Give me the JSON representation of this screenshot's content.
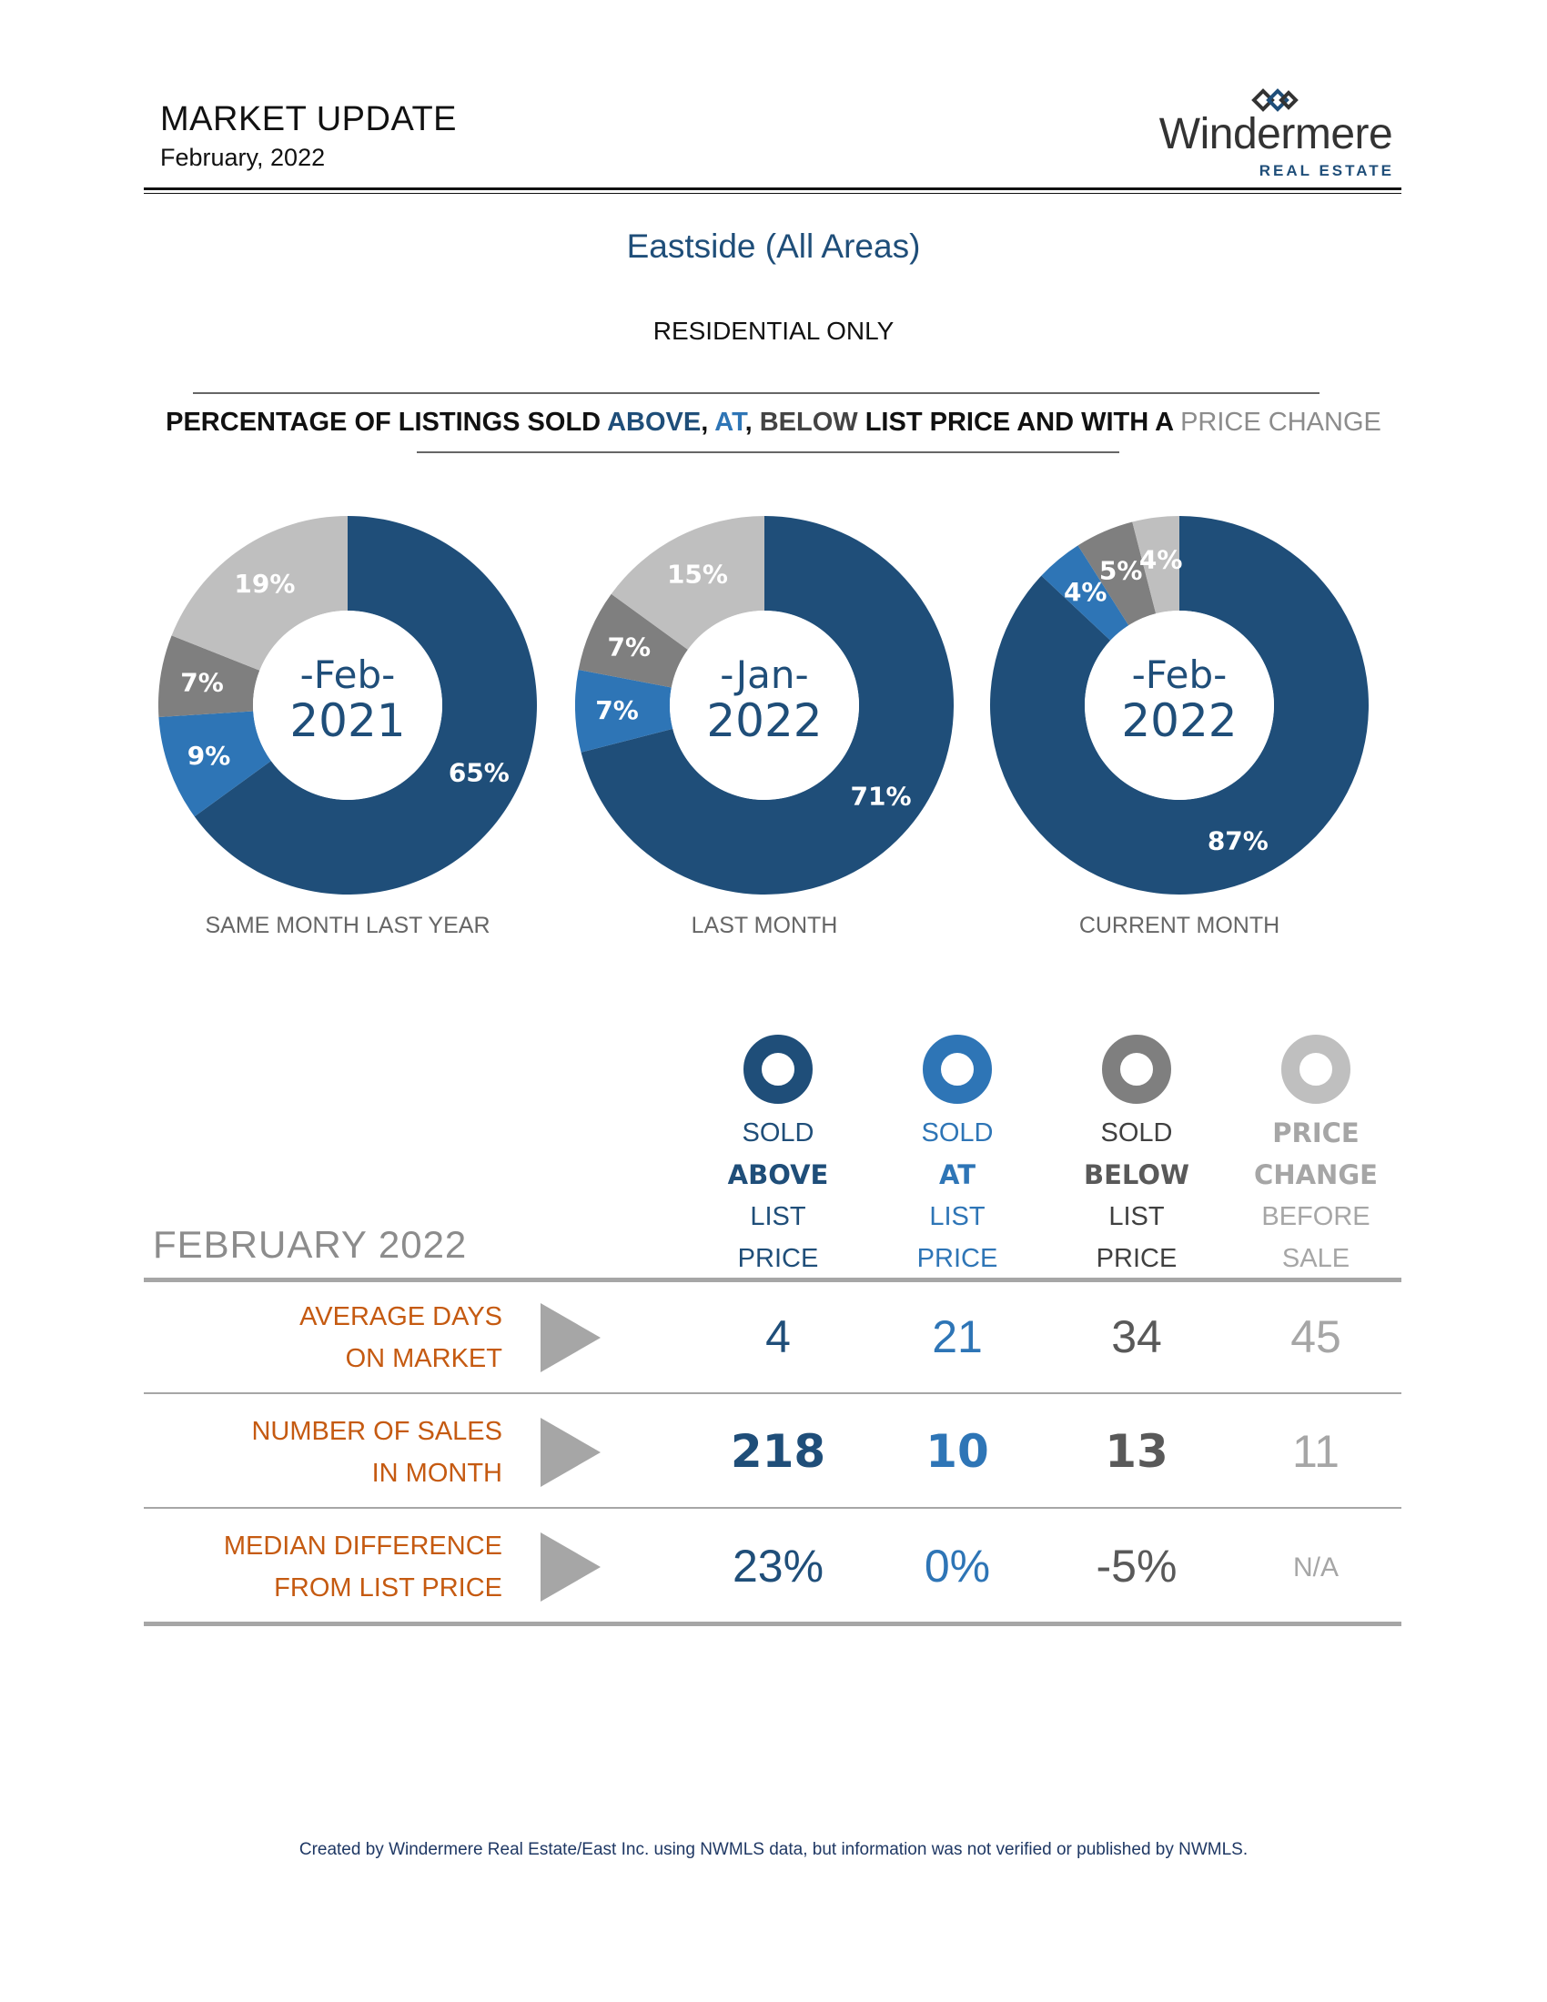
{
  "header": {
    "title": "MARKET UPDATE",
    "date": "February, 2022",
    "logo_word": "Windermere",
    "logo_sub": "REAL ESTATE"
  },
  "area_title": "Eastside (All Areas)",
  "property_type": "RESIDENTIAL ONLY",
  "section_heading": {
    "prefix": "PERCENTAGE OF LISTINGS SOLD ",
    "above": "ABOVE",
    "sep1": ", ",
    "at": "AT",
    "sep2": ", ",
    "below": "BELOW",
    "middle": " LIST PRICE AND WITH A ",
    "change": "PRICE CHANGE"
  },
  "colors": {
    "above": "#1f4e79",
    "at": "#2e75b6",
    "below": "#7f7f7f",
    "change": "#bfbfbf",
    "row_label": "#c55a11"
  },
  "chart_data": [
    {
      "type": "pie",
      "center_month": "-Feb-",
      "center_year": "2021",
      "caption": "SAME MONTH LAST YEAR",
      "series": [
        {
          "name": "SOLD ABOVE LIST PRICE",
          "value": 65,
          "label": "65%"
        },
        {
          "name": "SOLD AT LIST PRICE",
          "value": 9,
          "label": "9%"
        },
        {
          "name": "SOLD BELOW LIST PRICE",
          "value": 7,
          "label": "7%"
        },
        {
          "name": "PRICE CHANGE BEFORE SALE",
          "value": 19,
          "label": "19%"
        }
      ]
    },
    {
      "type": "pie",
      "center_month": "-Jan-",
      "center_year": "2022",
      "caption": "LAST MONTH",
      "series": [
        {
          "name": "SOLD ABOVE LIST PRICE",
          "value": 71,
          "label": "71%"
        },
        {
          "name": "SOLD AT LIST PRICE",
          "value": 7,
          "label": "7%"
        },
        {
          "name": "SOLD BELOW LIST PRICE",
          "value": 7,
          "label": "7%"
        },
        {
          "name": "PRICE CHANGE BEFORE SALE",
          "value": 15,
          "label": "15%"
        }
      ]
    },
    {
      "type": "pie",
      "center_month": "-Feb-",
      "center_year": "2022",
      "caption": "CURRENT MONTH",
      "series": [
        {
          "name": "SOLD ABOVE LIST PRICE",
          "value": 87,
          "label": "87%"
        },
        {
          "name": "SOLD AT LIST PRICE",
          "value": 4,
          "label": "4%"
        },
        {
          "name": "SOLD BELOW LIST PRICE",
          "value": 5,
          "label": "5%"
        },
        {
          "name": "PRICE CHANGE BEFORE SALE",
          "value": 4,
          "label": "4%"
        }
      ]
    }
  ],
  "table": {
    "month_label": "FEBRUARY 2022",
    "columns": [
      {
        "line1": "SOLD",
        "line2": "ABOVE",
        "line3": "LIST",
        "line4": "PRICE"
      },
      {
        "line1": "SOLD",
        "line2": "AT",
        "line3": "LIST",
        "line4": "PRICE"
      },
      {
        "line1": "SOLD",
        "line2": "BELOW",
        "line3": "LIST",
        "line4": "PRICE"
      },
      {
        "line1": "PRICE",
        "line2": "CHANGE",
        "line3": "BEFORE",
        "line4": "SALE"
      }
    ],
    "rows": [
      {
        "label1": "AVERAGE DAYS",
        "label2": "ON MARKET",
        "values": [
          "4",
          "21",
          "34",
          "45"
        ]
      },
      {
        "label1": "NUMBER OF SALES",
        "label2": "IN MONTH",
        "values": [
          "218",
          "10",
          "13",
          "11"
        ]
      },
      {
        "label1": "MEDIAN DIFFERENCE",
        "label2": "FROM LIST PRICE",
        "values": [
          "23%",
          "0%",
          "-5%",
          "N/A"
        ]
      }
    ]
  },
  "footnote": "Created by Windermere Real Estate/East Inc. using NWMLS data, but information was not verified or published by NWMLS."
}
